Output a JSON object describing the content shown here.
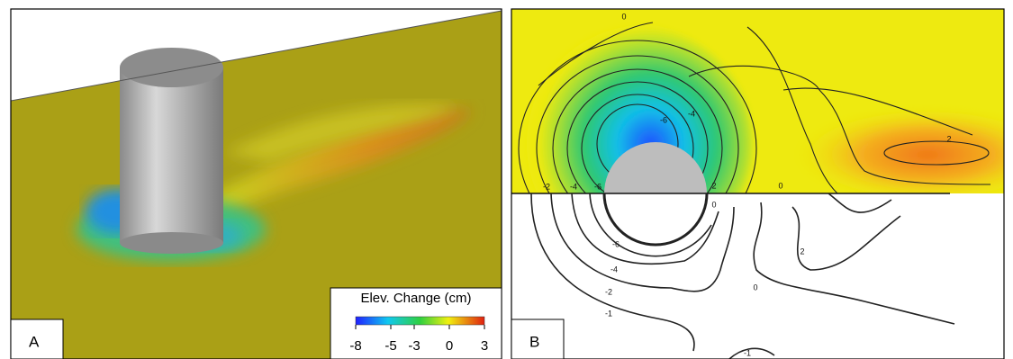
{
  "panel_a": {
    "label": "A",
    "colorbar": {
      "title": "Elev. Change (cm)",
      "range": [
        -8,
        3
      ],
      "ticks": [
        -8,
        -5,
        -3,
        0,
        3
      ]
    }
  },
  "panel_b": {
    "label": "B",
    "contour_labels": [
      "0",
      "-6",
      "-4",
      "2",
      "0",
      "2",
      "-2",
      "-4",
      "-6",
      "0",
      "-6",
      "-4",
      "-2",
      "-1",
      "2",
      "0",
      "-1"
    ]
  }
}
